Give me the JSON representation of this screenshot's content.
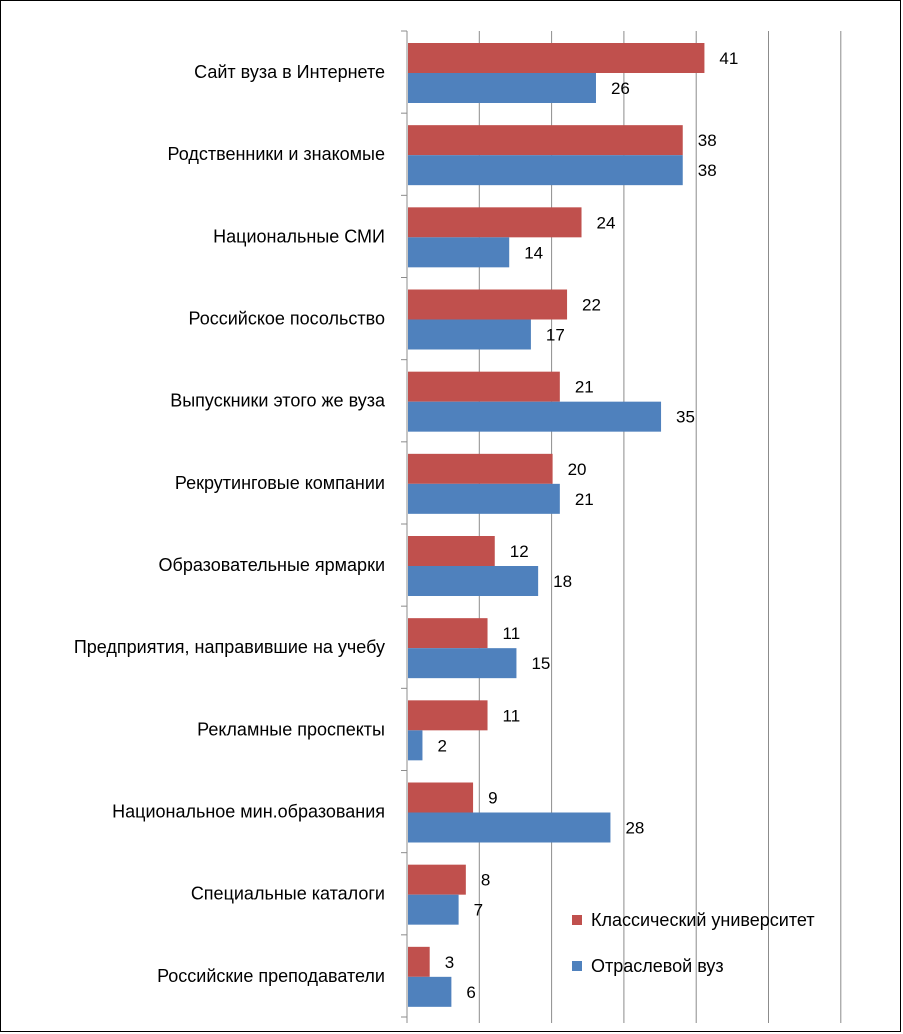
{
  "chart_data": {
    "type": "bar",
    "orientation": "horizontal",
    "categories": [
      "Сайт вуза в Интернете",
      "Родственники и знакомые",
      "Национальные СМИ",
      "Российское посольство",
      "Выпускники этого же вуза",
      "Рекрутинговые компании",
      "Образовательные ярмарки",
      "Предприятия, направившие на учебу",
      "Рекламные проспекты",
      "Национальное мин.образования",
      "Специальные каталоги",
      "Российские преподаватели"
    ],
    "series": [
      {
        "name": "Классический университет",
        "color": "#C0504D",
        "values": [
          41,
          38,
          24,
          22,
          21,
          20,
          12,
          11,
          11,
          9,
          8,
          3
        ]
      },
      {
        "name": "Отраслевой вуз",
        "color": "#4F81BD",
        "values": [
          26,
          38,
          14,
          17,
          35,
          21,
          18,
          15,
          2,
          28,
          7,
          6
        ]
      }
    ],
    "xlim": [
      0,
      65
    ],
    "grid": true,
    "legend": "bottom-right",
    "title": "",
    "xlabel": "",
    "ylabel": ""
  }
}
